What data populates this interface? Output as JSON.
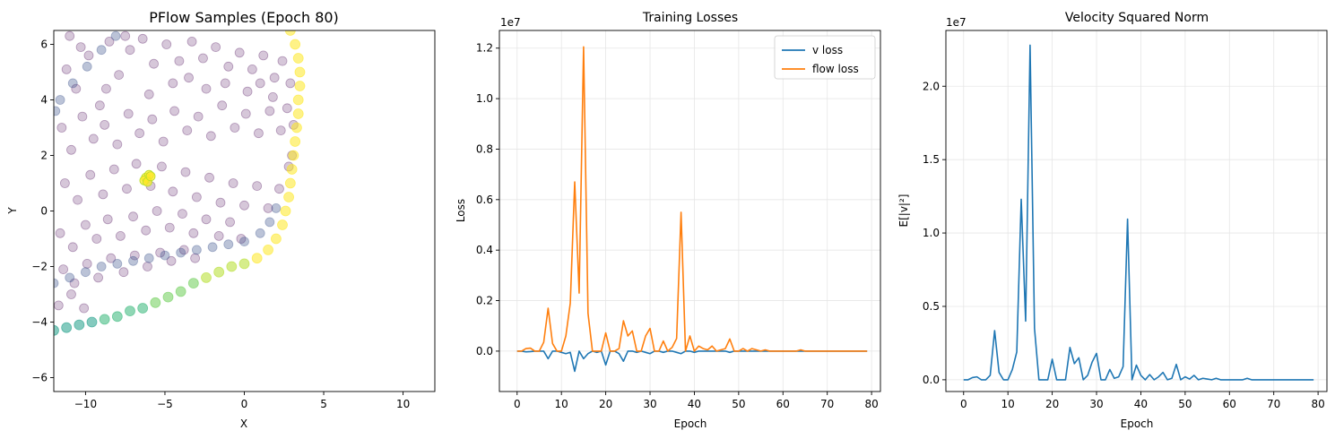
{
  "chart_data": [
    {
      "type": "scatter",
      "title": "PFlow Samples (Epoch 80)",
      "xlabel": "X",
      "ylabel": "Y",
      "xlim": [
        -12,
        12
      ],
      "ylim": [
        -6.5,
        6.5
      ],
      "xticks": [
        -10,
        -5,
        0,
        5,
        10
      ],
      "yticks": [
        -6,
        -4,
        -2,
        0,
        2,
        4,
        6
      ],
      "xtick_labels": [
        "−10",
        "−5",
        "0",
        "5",
        "10"
      ],
      "ytick_labels": [
        "−6",
        "−4",
        "−2",
        "0",
        "2",
        "4",
        "6"
      ],
      "grid": false,
      "colormap": "viridis",
      "marker_color_base": "#440154",
      "marker_color_high": "#fde725",
      "series": [
        {
          "points": [
            [
              -11.2,
              5.1
            ],
            [
              -10.6,
              4.4
            ],
            [
              -9.8,
              5.6
            ],
            [
              -9.1,
              3.8
            ],
            [
              -8.5,
              6.1
            ],
            [
              -7.9,
              4.9
            ],
            [
              -7.2,
              5.8
            ],
            [
              -6.4,
              6.2
            ],
            [
              -5.7,
              5.3
            ],
            [
              -4.9,
              6.0
            ],
            [
              -4.1,
              5.4
            ],
            [
              -3.3,
              6.1
            ],
            [
              -2.6,
              5.5
            ],
            [
              -1.8,
              5.9
            ],
            [
              -1.0,
              5.2
            ],
            [
              -0.3,
              5.7
            ],
            [
              0.5,
              5.1
            ],
            [
              1.2,
              5.6
            ],
            [
              1.9,
              4.8
            ],
            [
              2.4,
              5.4
            ],
            [
              -11.5,
              3.0
            ],
            [
              -10.9,
              2.2
            ],
            [
              -10.2,
              3.4
            ],
            [
              -9.5,
              2.6
            ],
            [
              -8.8,
              3.1
            ],
            [
              -8.0,
              2.4
            ],
            [
              -7.3,
              3.5
            ],
            [
              -6.6,
              2.8
            ],
            [
              -5.8,
              3.3
            ],
            [
              -5.1,
              2.5
            ],
            [
              -4.4,
              3.6
            ],
            [
              -3.6,
              2.9
            ],
            [
              -2.9,
              3.4
            ],
            [
              -2.1,
              2.7
            ],
            [
              -1.4,
              3.8
            ],
            [
              -0.6,
              3.0
            ],
            [
              0.1,
              3.5
            ],
            [
              0.9,
              2.8
            ],
            [
              1.6,
              3.6
            ],
            [
              2.3,
              2.9
            ],
            [
              -11.3,
              1.0
            ],
            [
              -10.5,
              0.4
            ],
            [
              -9.7,
              1.3
            ],
            [
              -8.9,
              0.6
            ],
            [
              -8.2,
              1.5
            ],
            [
              -7.4,
              0.8
            ],
            [
              -6.8,
              1.7
            ],
            [
              -5.9,
              0.9
            ],
            [
              -5.2,
              1.6
            ],
            [
              -4.5,
              0.7
            ],
            [
              -3.7,
              1.4
            ],
            [
              -3.0,
              0.5
            ],
            [
              -2.2,
              1.2
            ],
            [
              -1.5,
              0.3
            ],
            [
              -0.7,
              1.0
            ],
            [
              0.0,
              0.2
            ],
            [
              0.8,
              0.9
            ],
            [
              1.5,
              0.1
            ],
            [
              2.2,
              0.8
            ],
            [
              2.8,
              1.6
            ],
            [
              -11.6,
              -0.8
            ],
            [
              -10.8,
              -1.3
            ],
            [
              -10.0,
              -0.5
            ],
            [
              -9.3,
              -1.0
            ],
            [
              -8.6,
              -0.3
            ],
            [
              -7.8,
              -0.9
            ],
            [
              -7.0,
              -0.2
            ],
            [
              -6.2,
              -0.7
            ],
            [
              -5.5,
              0.0
            ],
            [
              -4.7,
              -0.6
            ],
            [
              -3.9,
              -0.1
            ],
            [
              -3.2,
              -0.8
            ],
            [
              -2.4,
              -0.3
            ],
            [
              -1.6,
              -0.9
            ],
            [
              -0.9,
              -0.4
            ],
            [
              -0.2,
              -1.0
            ],
            [
              -11.4,
              -2.1
            ],
            [
              -10.7,
              -2.6
            ],
            [
              -9.9,
              -1.9
            ],
            [
              -9.2,
              -2.4
            ],
            [
              -8.4,
              -1.7
            ],
            [
              -7.6,
              -2.2
            ],
            [
              -6.9,
              -1.6
            ],
            [
              -6.1,
              -2.0
            ],
            [
              -5.3,
              -1.5
            ],
            [
              -4.6,
              -1.8
            ],
            [
              -3.8,
              -1.4
            ],
            [
              -3.1,
              -1.7
            ],
            [
              -11.7,
              -3.4
            ],
            [
              -10.9,
              -3.0
            ],
            [
              -10.1,
              -3.5
            ],
            [
              -11.0,
              6.3
            ],
            [
              -7.5,
              6.3
            ],
            [
              -4.5,
              4.6
            ],
            [
              -2.4,
              4.4
            ],
            [
              0.2,
              4.3
            ],
            [
              1.8,
              4.1
            ],
            [
              2.7,
              3.7
            ],
            [
              3.0,
              2.0
            ],
            [
              -6.0,
              4.2
            ],
            [
              -8.7,
              4.4
            ],
            [
              -10.3,
              5.9
            ],
            [
              -3.5,
              4.8
            ],
            [
              -1.2,
              4.6
            ],
            [
              1.0,
              4.6
            ],
            [
              2.9,
              4.6
            ],
            [
              3.1,
              3.1
            ]
          ],
          "ring_points": [
            [
              2.9,
              6.5
            ],
            [
              3.2,
              6.0
            ],
            [
              3.4,
              5.5
            ],
            [
              3.5,
              5.0
            ],
            [
              3.5,
              4.5
            ],
            [
              3.4,
              4.0
            ],
            [
              3.4,
              3.5
            ],
            [
              3.3,
              3.0
            ],
            [
              3.2,
              2.5
            ],
            [
              3.1,
              2.0
            ],
            [
              3.0,
              1.5
            ],
            [
              2.9,
              1.0
            ],
            [
              2.8,
              0.5
            ],
            [
              2.6,
              0.0
            ],
            [
              2.4,
              -0.5
            ],
            [
              2.0,
              -1.0
            ],
            [
              1.5,
              -1.4
            ],
            [
              0.8,
              -1.7
            ],
            [
              0.0,
              -1.9
            ],
            [
              -0.8,
              -2.0
            ],
            [
              -1.6,
              -2.2
            ],
            [
              -2.4,
              -2.4
            ],
            [
              -3.2,
              -2.6
            ],
            [
              -4.0,
              -2.9
            ],
            [
              -4.8,
              -3.1
            ],
            [
              -5.6,
              -3.3
            ],
            [
              -6.4,
              -3.5
            ],
            [
              -7.2,
              -3.6
            ],
            [
              -8.0,
              -3.8
            ],
            [
              -8.8,
              -3.9
            ],
            [
              -9.6,
              -4.0
            ],
            [
              -10.4,
              -4.1
            ],
            [
              -11.2,
              -4.2
            ],
            [
              -12.0,
              -4.3
            ]
          ],
          "inner_band": [
            [
              -12.0,
              -2.6
            ],
            [
              -11.0,
              -2.4
            ],
            [
              -10.0,
              -2.2
            ],
            [
              -9.0,
              -2.0
            ],
            [
              -8.0,
              -1.9
            ],
            [
              -7.0,
              -1.8
            ],
            [
              -6.0,
              -1.7
            ],
            [
              -5.0,
              -1.6
            ],
            [
              -4.0,
              -1.5
            ],
            [
              -3.0,
              -1.4
            ],
            [
              -2.0,
              -1.3
            ],
            [
              -1.0,
              -1.2
            ],
            [
              0.0,
              -1.1
            ],
            [
              1.0,
              -0.8
            ],
            [
              1.6,
              -0.4
            ],
            [
              2.0,
              0.1
            ],
            [
              -11.6,
              4.0
            ],
            [
              -10.8,
              4.6
            ],
            [
              -9.9,
              5.2
            ],
            [
              -9.0,
              5.8
            ],
            [
              -8.1,
              6.3
            ],
            [
              -11.9,
              3.6
            ]
          ],
          "cluster": [
            [
              -6.2,
              1.2
            ],
            [
              -6.0,
              1.3
            ],
            [
              -6.3,
              1.1
            ],
            [
              -6.1,
              1.05
            ],
            [
              -5.9,
              1.25
            ]
          ]
        }
      ]
    },
    {
      "type": "line",
      "title": "Training Losses",
      "xlabel": "Epoch",
      "ylabel": "Loss",
      "offset_text": "1e7",
      "xlim": [
        -4,
        82
      ],
      "ylim": [
        -0.16,
        1.27
      ],
      "xticks": [
        0,
        10,
        20,
        30,
        40,
        50,
        60,
        70,
        80
      ],
      "yticks": [
        0.0,
        0.2,
        0.4,
        0.6,
        0.8,
        1.0,
        1.2
      ],
      "xtick_labels": [
        "0",
        "10",
        "20",
        "30",
        "40",
        "50",
        "60",
        "70",
        "80"
      ],
      "ytick_labels": [
        "0.0",
        "0.2",
        "0.4",
        "0.6",
        "0.8",
        "1.0",
        "1.2"
      ],
      "grid": true,
      "legend_position": "top-right",
      "series": [
        {
          "name": "v loss",
          "color": "#1f77b4",
          "values": [
            0,
            0,
            -0.003,
            -0.002,
            0,
            0,
            0,
            -0.03,
            0,
            0,
            -0.005,
            -0.01,
            -0.005,
            -0.08,
            0,
            -0.03,
            -0.01,
            0,
            -0.005,
            0,
            -0.055,
            0,
            0,
            -0.01,
            -0.04,
            0,
            0,
            -0.005,
            0,
            -0.005,
            -0.01,
            0,
            0,
            -0.005,
            0,
            0,
            -0.005,
            -0.01,
            0,
            0,
            -0.005,
            0,
            0,
            0,
            0,
            0,
            0,
            0,
            -0.005,
            0,
            0,
            0,
            0,
            0,
            0,
            0,
            0,
            0,
            0,
            0,
            0,
            0,
            0,
            0,
            0,
            0,
            0,
            0,
            0,
            0,
            0,
            0,
            0,
            0,
            0,
            0,
            0,
            0,
            0,
            0
          ]
        },
        {
          "name": "flow loss",
          "color": "#ff7f0e",
          "values": [
            0,
            0,
            0.01,
            0.012,
            0,
            0,
            0.035,
            0.17,
            0.03,
            0,
            0,
            0.06,
            0.19,
            0.67,
            0.23,
            1.205,
            0.15,
            0,
            0,
            0,
            0.072,
            0,
            0,
            0.01,
            0.12,
            0.06,
            0.08,
            0,
            0,
            0.06,
            0.09,
            0,
            0,
            0.04,
            0,
            0.015,
            0.05,
            0.55,
            0,
            0.06,
            0,
            0.02,
            0.01,
            0.005,
            0.02,
            0,
            0.005,
            0.01,
            0.048,
            0,
            0,
            0.01,
            0,
            0.01,
            0.005,
            0,
            0.005,
            0,
            0,
            0,
            0,
            0,
            0,
            0,
            0.005,
            0,
            0,
            0,
            0,
            0,
            0,
            0,
            0,
            0,
            0,
            0,
            0,
            0,
            0,
            0
          ]
        }
      ]
    },
    {
      "type": "line",
      "title": "Velocity Squared Norm",
      "xlabel": "Epoch",
      "ylabel": "E[|v|²]",
      "offset_text": "1e7",
      "xlim": [
        -4,
        82
      ],
      "ylim": [
        -0.08,
        2.38
      ],
      "xticks": [
        0,
        10,
        20,
        30,
        40,
        50,
        60,
        70,
        80
      ],
      "yticks": [
        0.0,
        0.5,
        1.0,
        1.5,
        2.0
      ],
      "xtick_labels": [
        "0",
        "10",
        "20",
        "30",
        "40",
        "50",
        "60",
        "70",
        "80"
      ],
      "ytick_labels": [
        "0.0",
        "0.5",
        "1.0",
        "1.5",
        "2.0"
      ],
      "grid": true,
      "series": [
        {
          "color": "#1f77b4",
          "values": [
            0,
            0,
            0.015,
            0.02,
            0,
            0,
            0.03,
            0.335,
            0.05,
            0,
            0,
            0.07,
            0.19,
            1.23,
            0.4,
            2.28,
            0.35,
            0,
            0,
            0,
            0.14,
            0,
            0,
            0,
            0.22,
            0.11,
            0.15,
            0,
            0.03,
            0.12,
            0.18,
            0,
            0,
            0.07,
            0.01,
            0.02,
            0.09,
            1.095,
            0,
            0.1,
            0.03,
            0,
            0.035,
            0,
            0.02,
            0.05,
            0,
            0.01,
            0.105,
            0,
            0.02,
            0.005,
            0.03,
            0,
            0.01,
            0.005,
            0,
            0.01,
            0,
            0,
            0,
            0,
            0,
            0,
            0.01,
            0,
            0,
            0,
            0,
            0,
            0,
            0,
            0,
            0,
            0,
            0,
            0,
            0,
            0,
            0
          ]
        }
      ]
    }
  ]
}
